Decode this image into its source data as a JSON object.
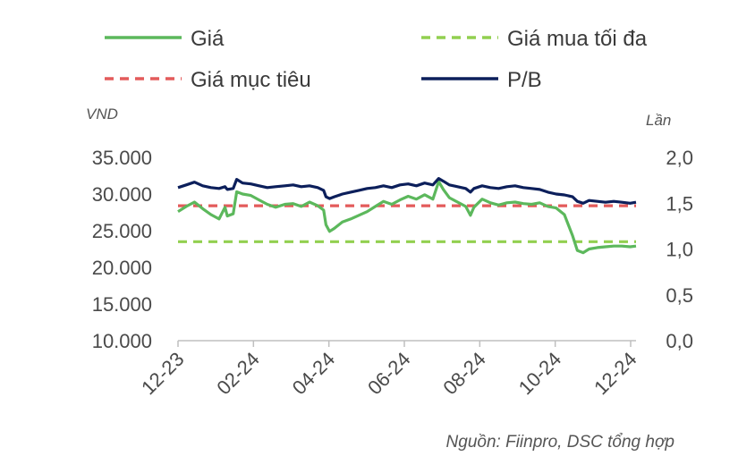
{
  "legend": [
    {
      "label": "Giá",
      "color": "#5cb85c",
      "dash": false
    },
    {
      "label": "Giá mua tối đa",
      "color": "#92d050",
      "dash": true
    },
    {
      "label": "Giá mục tiêu",
      "color": "#e35b5b",
      "dash": true
    },
    {
      "label": "P/B",
      "color": "#0c1f5b",
      "dash": false
    }
  ],
  "source": "Nguồn: Fiinpro, DSC tổng hợp",
  "chart_data": {
    "type": "line",
    "y_left": {
      "label": "VND",
      "min": 10000,
      "max": 35000,
      "ticks": [
        "10.000",
        "15.000",
        "20.000",
        "25.000",
        "30.000",
        "35.000"
      ],
      "tick_values": [
        10000,
        15000,
        20000,
        25000,
        30000,
        35000
      ]
    },
    "y_right": {
      "label": "Lần",
      "min": 0,
      "max": 2,
      "ticks": [
        "0,0",
        "0,5",
        "1,0",
        "1,5",
        "2,0"
      ],
      "tick_values": [
        0,
        0.5,
        1,
        1.5,
        2
      ]
    },
    "x_ticks": [
      "12-23",
      "02-24",
      "04-24",
      "06-24",
      "08-24",
      "10-24",
      "12-24"
    ],
    "x_start": "2023-12-01",
    "x_end": "2024-12-25",
    "grid": false,
    "series": [
      {
        "name": "Giá",
        "axis": "left",
        "color": "#5cb85c",
        "points": [
          [
            "2023-12-01",
            27600
          ],
          [
            "2023-12-08",
            28300
          ],
          [
            "2023-12-15",
            28900
          ],
          [
            "2023-12-22",
            28000
          ],
          [
            "2023-12-29",
            27200
          ],
          [
            "2024-01-05",
            26600
          ],
          [
            "2024-01-10",
            28200
          ],
          [
            "2024-01-12",
            27000
          ],
          [
            "2024-01-17",
            27300
          ],
          [
            "2024-01-20",
            30300
          ],
          [
            "2024-01-25",
            30000
          ],
          [
            "2024-02-01",
            29800
          ],
          [
            "2024-02-08",
            29200
          ],
          [
            "2024-02-15",
            28600
          ],
          [
            "2024-02-22",
            28200
          ],
          [
            "2024-03-01",
            28600
          ],
          [
            "2024-03-08",
            28700
          ],
          [
            "2024-03-15",
            28300
          ],
          [
            "2024-03-22",
            28900
          ],
          [
            "2024-03-29",
            28400
          ],
          [
            "2024-04-03",
            27800
          ],
          [
            "2024-04-05",
            25800
          ],
          [
            "2024-04-08",
            24900
          ],
          [
            "2024-04-12",
            25300
          ],
          [
            "2024-04-19",
            26200
          ],
          [
            "2024-04-26",
            26600
          ],
          [
            "2024-05-03",
            27100
          ],
          [
            "2024-05-10",
            27600
          ],
          [
            "2024-05-17",
            28300
          ],
          [
            "2024-05-24",
            29000
          ],
          [
            "2024-05-31",
            28600
          ],
          [
            "2024-06-07",
            29200
          ],
          [
            "2024-06-14",
            29700
          ],
          [
            "2024-06-21",
            29300
          ],
          [
            "2024-06-28",
            29900
          ],
          [
            "2024-07-05",
            29300
          ],
          [
            "2024-07-10",
            31700
          ],
          [
            "2024-07-14",
            30600
          ],
          [
            "2024-07-19",
            29500
          ],
          [
            "2024-07-26",
            28900
          ],
          [
            "2024-08-02",
            28300
          ],
          [
            "2024-08-06",
            27100
          ],
          [
            "2024-08-09",
            28200
          ],
          [
            "2024-08-16",
            29300
          ],
          [
            "2024-08-23",
            28800
          ],
          [
            "2024-08-30",
            28500
          ],
          [
            "2024-09-06",
            28800
          ],
          [
            "2024-09-13",
            28900
          ],
          [
            "2024-09-20",
            28700
          ],
          [
            "2024-09-27",
            28600
          ],
          [
            "2024-10-04",
            28800
          ],
          [
            "2024-10-11",
            28300
          ],
          [
            "2024-10-18",
            28100
          ],
          [
            "2024-10-25",
            27200
          ],
          [
            "2024-11-01",
            24300
          ],
          [
            "2024-11-05",
            22300
          ],
          [
            "2024-11-10",
            22000
          ],
          [
            "2024-11-15",
            22500
          ],
          [
            "2024-11-22",
            22700
          ],
          [
            "2024-11-29",
            22800
          ],
          [
            "2024-12-06",
            22900
          ],
          [
            "2024-12-13",
            22900
          ],
          [
            "2024-12-20",
            22800
          ],
          [
            "2024-12-25",
            22900
          ]
        ]
      },
      {
        "name": "Giá mục tiêu",
        "axis": "left",
        "color": "#e35b5b",
        "dash": true,
        "points": [
          [
            "2023-12-01",
            28400
          ],
          [
            "2024-12-25",
            28400
          ]
        ]
      },
      {
        "name": "Giá mua tối đa",
        "axis": "left",
        "color": "#92d050",
        "dash": true,
        "points": [
          [
            "2023-12-01",
            23500
          ],
          [
            "2024-12-25",
            23500
          ]
        ]
      },
      {
        "name": "P/B",
        "axis": "right",
        "color": "#0c1f5b",
        "points": [
          [
            "2023-12-01",
            1.67
          ],
          [
            "2023-12-08",
            1.7
          ],
          [
            "2023-12-15",
            1.73
          ],
          [
            "2023-12-22",
            1.69
          ],
          [
            "2023-12-29",
            1.67
          ],
          [
            "2024-01-05",
            1.66
          ],
          [
            "2024-01-10",
            1.68
          ],
          [
            "2024-01-12",
            1.65
          ],
          [
            "2024-01-17",
            1.66
          ],
          [
            "2024-01-20",
            1.76
          ],
          [
            "2024-01-25",
            1.72
          ],
          [
            "2024-02-01",
            1.71
          ],
          [
            "2024-02-08",
            1.69
          ],
          [
            "2024-02-15",
            1.67
          ],
          [
            "2024-02-22",
            1.68
          ],
          [
            "2024-03-01",
            1.69
          ],
          [
            "2024-03-08",
            1.7
          ],
          [
            "2024-03-15",
            1.68
          ],
          [
            "2024-03-22",
            1.69
          ],
          [
            "2024-03-29",
            1.67
          ],
          [
            "2024-04-03",
            1.64
          ],
          [
            "2024-04-05",
            1.57
          ],
          [
            "2024-04-08",
            1.55
          ],
          [
            "2024-04-12",
            1.57
          ],
          [
            "2024-04-19",
            1.6
          ],
          [
            "2024-04-26",
            1.62
          ],
          [
            "2024-05-03",
            1.64
          ],
          [
            "2024-05-10",
            1.66
          ],
          [
            "2024-05-17",
            1.67
          ],
          [
            "2024-05-24",
            1.69
          ],
          [
            "2024-05-31",
            1.67
          ],
          [
            "2024-06-07",
            1.7
          ],
          [
            "2024-06-14",
            1.71
          ],
          [
            "2024-06-21",
            1.69
          ],
          [
            "2024-06-28",
            1.72
          ],
          [
            "2024-07-05",
            1.7
          ],
          [
            "2024-07-10",
            1.77
          ],
          [
            "2024-07-14",
            1.74
          ],
          [
            "2024-07-19",
            1.7
          ],
          [
            "2024-07-26",
            1.68
          ],
          [
            "2024-08-02",
            1.66
          ],
          [
            "2024-08-06",
            1.62
          ],
          [
            "2024-08-09",
            1.66
          ],
          [
            "2024-08-16",
            1.69
          ],
          [
            "2024-08-23",
            1.67
          ],
          [
            "2024-08-30",
            1.66
          ],
          [
            "2024-09-06",
            1.68
          ],
          [
            "2024-09-13",
            1.69
          ],
          [
            "2024-09-20",
            1.67
          ],
          [
            "2024-09-27",
            1.66
          ],
          [
            "2024-10-04",
            1.65
          ],
          [
            "2024-10-11",
            1.62
          ],
          [
            "2024-10-18",
            1.6
          ],
          [
            "2024-10-25",
            1.59
          ],
          [
            "2024-11-01",
            1.57
          ],
          [
            "2024-11-05",
            1.52
          ],
          [
            "2024-11-10",
            1.5
          ],
          [
            "2024-11-15",
            1.53
          ],
          [
            "2024-11-22",
            1.52
          ],
          [
            "2024-11-29",
            1.51
          ],
          [
            "2024-12-06",
            1.52
          ],
          [
            "2024-12-13",
            1.51
          ],
          [
            "2024-12-20",
            1.5
          ],
          [
            "2024-12-25",
            1.51
          ]
        ]
      }
    ]
  }
}
